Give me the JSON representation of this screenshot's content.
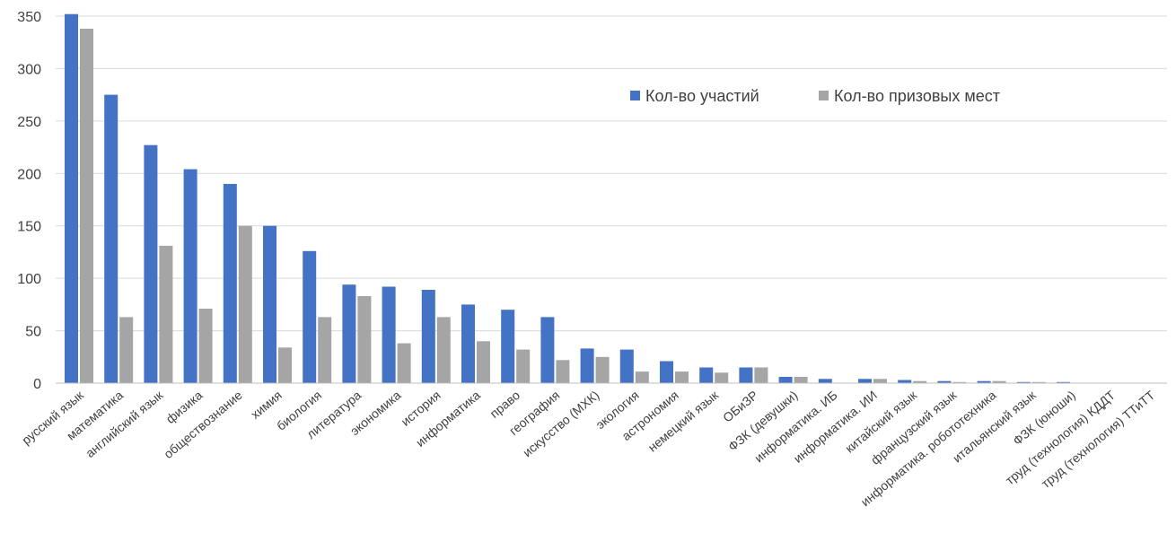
{
  "chart_data": {
    "type": "bar",
    "title": "",
    "xlabel": "",
    "ylabel": "",
    "ylim": [
      0,
      350
    ],
    "yticks": [
      0,
      50,
      100,
      150,
      200,
      250,
      300,
      350
    ],
    "grid": true,
    "legend_position": "top-right",
    "categories": [
      "русский язык",
      "математика",
      "английский язык",
      "физика",
      "обществознание",
      "химия",
      "биология",
      "литература",
      "экономика",
      "история",
      "информатика",
      "право",
      "география",
      "искусство (МХК)",
      "экология",
      "астрономия",
      "немецкий язык",
      "ОБиЗР",
      "ФЗК (девушки)",
      "информатика. ИБ",
      "информатика. ИИ",
      "китайский язык",
      "французский язык",
      "информатика. робототехника",
      "итальянский язык",
      "ФЗК (юноши)",
      "труд (технология) КДДТ",
      "труд (технология) ТТиТТ"
    ],
    "series": [
      {
        "name": "Кол-во участий",
        "color": "#4472c4",
        "values": [
          352,
          275,
          227,
          204,
          190,
          150,
          126,
          94,
          92,
          89,
          75,
          70,
          63,
          33,
          32,
          21,
          15,
          15,
          6,
          4,
          4,
          3,
          2,
          2,
          1,
          1,
          0,
          0
        ]
      },
      {
        "name": "Кол-во призовых мест",
        "color": "#a5a5a5",
        "values": [
          338,
          63,
          131,
          71,
          150,
          34,
          63,
          83,
          38,
          63,
          40,
          32,
          22,
          25,
          11,
          11,
          10,
          15,
          6,
          0,
          4,
          2,
          1,
          2,
          1,
          0,
          0,
          0
        ]
      }
    ]
  }
}
